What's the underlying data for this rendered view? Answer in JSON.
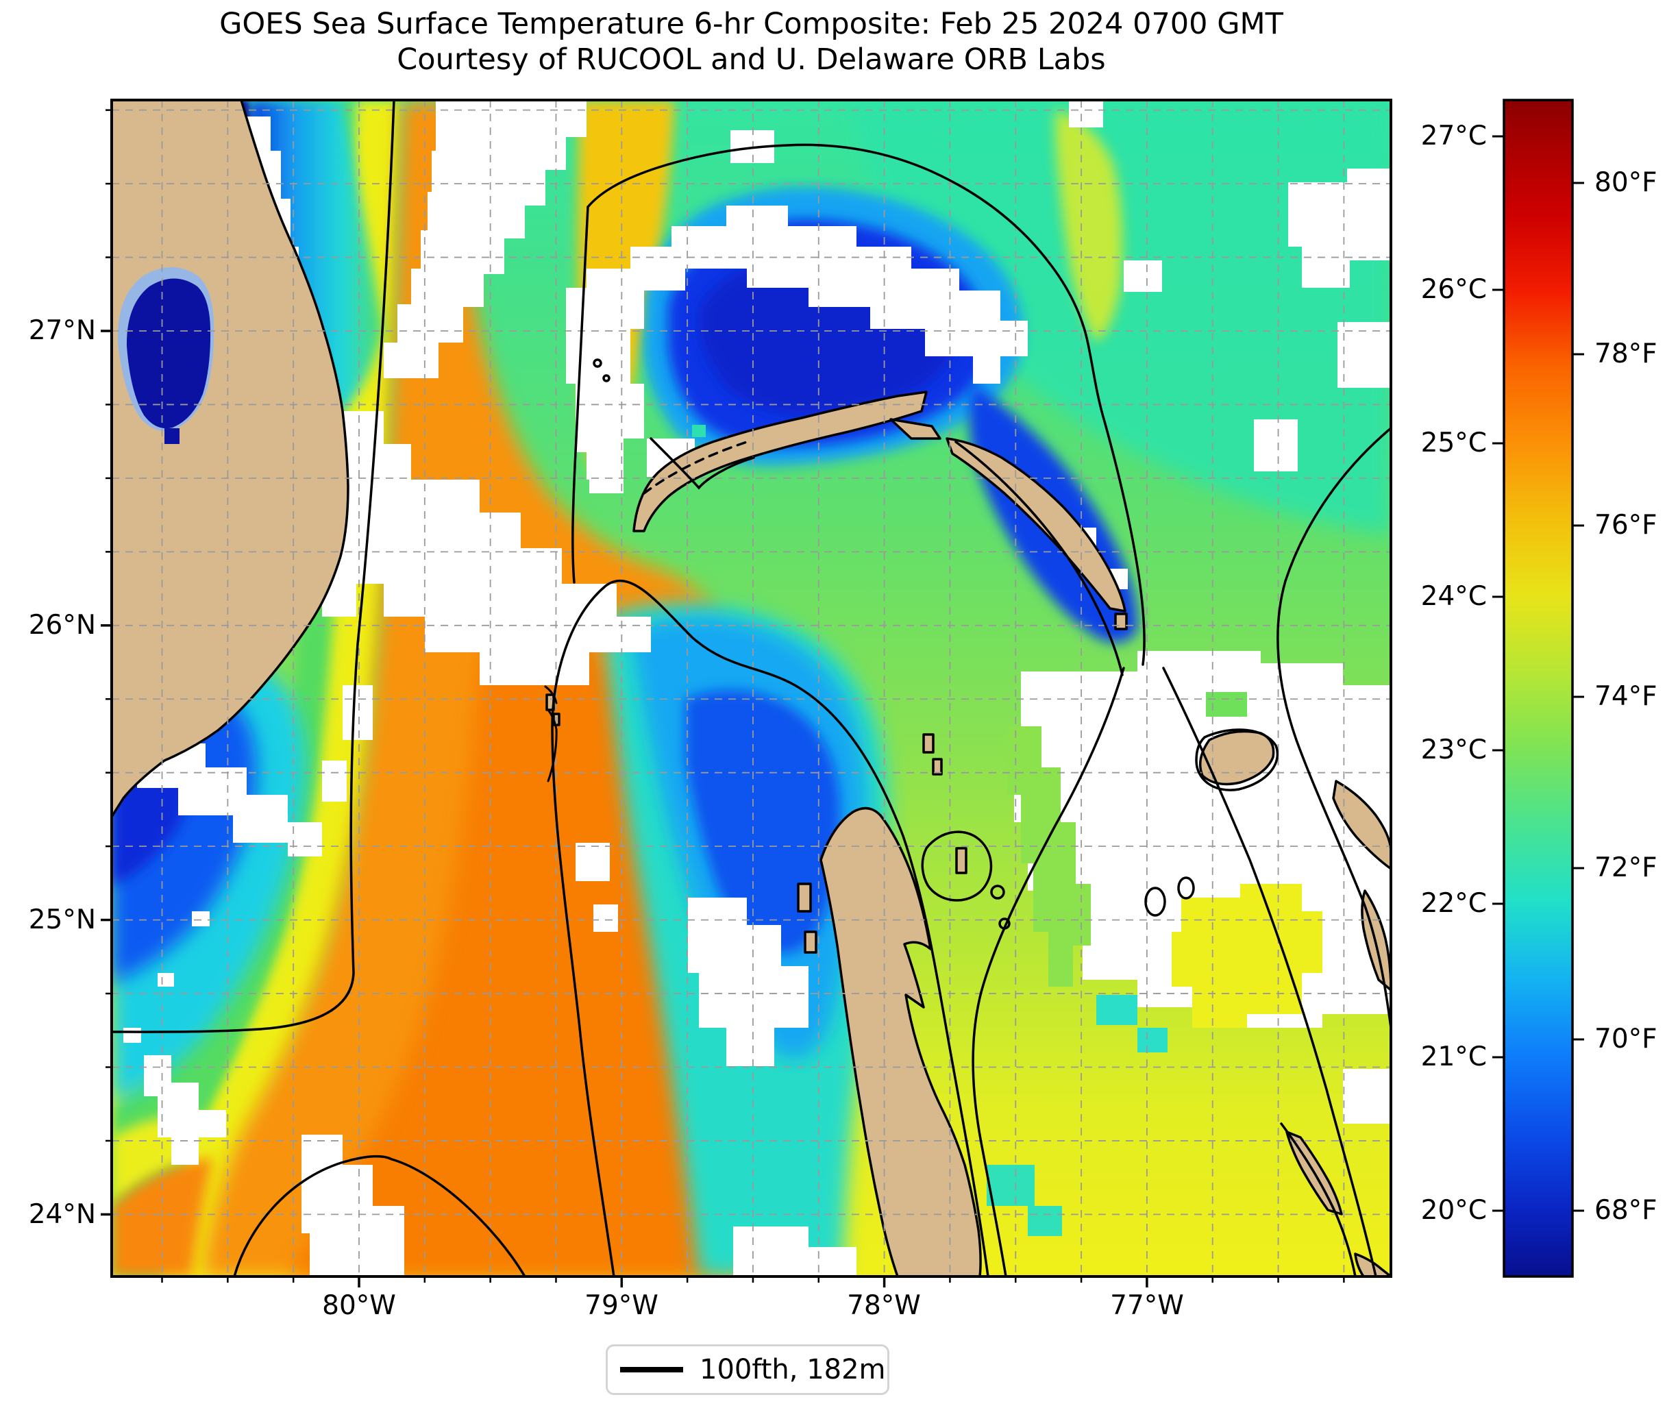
{
  "figure": {
    "title_line1": "GOES Sea Surface Temperature 6-hr Composite: Feb 25 2024 0700 GMT",
    "title_line2": "Courtesy of RUCOOL and U. Delaware ORB Labs"
  },
  "axes": {
    "lon_ticks": [
      "80°W",
      "79°W",
      "78°W",
      "77°W"
    ],
    "lat_ticks": [
      "27°N",
      "26°N",
      "25°N",
      "24°N"
    ]
  },
  "colorbar": {
    "celsius_ticks": [
      "27°C",
      "26°C",
      "25°C",
      "24°C",
      "23°C",
      "22°C",
      "21°C",
      "20°C"
    ],
    "fahrenheit_ticks": [
      "80°F",
      "78°F",
      "76°F",
      "74°F",
      "72°F",
      "70°F",
      "68°F"
    ]
  },
  "legend": {
    "label": "100fth, 182m"
  },
  "chart_data": {
    "type": "heatmap",
    "title": "GOES Sea Surface Temperature 6-hr Composite: Feb 25 2024 0700 GMT",
    "subtitle": "Courtesy of RUCOOL and U. Delaware ORB Labs",
    "variable": "sea surface temperature",
    "lon_range_deg_w": [
      80.94,
      76.06
    ],
    "lat_range_deg_n": [
      23.79,
      27.78
    ],
    "lon_tick_values_w": [
      80,
      79,
      78,
      77
    ],
    "lat_tick_values_n": [
      27,
      26,
      25,
      24
    ],
    "grid_interval_deg": 0.25,
    "grid_style": "dashed gray",
    "colormap": "jet",
    "colorbar_range_c": [
      19.6,
      27.2
    ],
    "colorbar_ticks_c": [
      27,
      26,
      25,
      24,
      23,
      22,
      21,
      20
    ],
    "colorbar_ticks_f": [
      80,
      78,
      76,
      74,
      72,
      70,
      68
    ],
    "colormap_stops_top_to_bottom": [
      "#8b0000",
      "#cd0000",
      "#f21c00",
      "#fa6400",
      "#fb9207",
      "#f3c00c",
      "#e7e419",
      "#b5e635",
      "#7ee356",
      "#48e392",
      "#20dfca",
      "#14b2f2",
      "#0e7cfa",
      "#0b4ce9",
      "#0a24c2",
      "#070f8e"
    ],
    "contour_legend": {
      "label": "100fth, 182m",
      "depth_fathoms": 100,
      "depth_m": 182,
      "line_color": "#000000"
    },
    "no_data_color": "#ffffff",
    "land_color": "#d8b98e",
    "features": [
      {
        "name": "florida-peninsula",
        "type": "land",
        "color": "#d8b98e"
      },
      {
        "name": "lake-okeechobee-cold",
        "type": "water",
        "approx_temp_c": 19.8,
        "color": "#0b12a2"
      },
      {
        "name": "cape-coast-cold-pool",
        "type": "water",
        "approx_temp_c": 20.0,
        "color": "#0b12a2"
      },
      {
        "name": "gulf-stream-warm-tongue",
        "type": "water",
        "approx_temp_c": 25.5,
        "color": "#f88a06"
      },
      {
        "name": "florida-coastal-cold-band",
        "type": "water",
        "approx_temp_c": 20.8,
        "color": "#0e5af2"
      },
      {
        "name": "little-bahama-bank-cold-pool",
        "type": "water",
        "approx_temp_c": 20.6,
        "color": "#0b35e6"
      },
      {
        "name": "great-bahama-bank-cold-tongue",
        "type": "water",
        "approx_temp_c": 21.3,
        "color": "#14a8f2"
      },
      {
        "name": "atlantic-open-water",
        "type": "water",
        "approx_temp_c": 23.0,
        "color": "#55dc74"
      },
      {
        "name": "bahama-banks-shallows",
        "type": "water",
        "approx_temp_c": 24.2,
        "color": "#e8ec20"
      },
      {
        "name": "cloud-no-data",
        "type": "mask",
        "color": "#ffffff"
      },
      {
        "name": "grand-bahama-island",
        "type": "land",
        "color": "#d8b98e"
      },
      {
        "name": "abaco-islands",
        "type": "land",
        "color": "#d8b98e"
      },
      {
        "name": "bimini-islands",
        "type": "land",
        "color": "#d8b98e"
      },
      {
        "name": "berry-islands",
        "type": "land",
        "color": "#d8b98e"
      },
      {
        "name": "andros-island",
        "type": "land",
        "color": "#d8b98e"
      },
      {
        "name": "new-providence-area",
        "type": "land",
        "color": "#d8b98e"
      },
      {
        "name": "eleuthera-chain",
        "type": "land",
        "color": "#d8b98e"
      },
      {
        "name": "exuma-cays",
        "type": "land",
        "color": "#d8b98e"
      }
    ],
    "approx_sst_grid": {
      "lon_w": [
        80.7,
        80.2,
        79.7,
        79.2,
        78.7,
        78.2,
        77.7,
        77.2,
        76.7,
        76.3
      ],
      "lat_n": [
        27.6,
        27.1,
        26.6,
        26.1,
        25.6,
        25.1,
        24.6,
        24.1
      ],
      "sst_c": [
        [
          null,
          19.9,
          25.0,
          null,
          24.3,
          23.2,
          23.0,
          22.9,
          22.8,
          22.8
        ],
        [
          19.8,
          22.5,
          25.2,
          null,
          20.8,
          20.6,
          22.9,
          23.0,
          22.9,
          22.8
        ],
        [
          null,
          23.0,
          24.7,
          null,
          20.7,
          20.5,
          null,
          23.0,
          23.0,
          22.9
        ],
        [
          null,
          23.2,
          24.4,
          25.2,
          24.0,
          20.9,
          21.5,
          23.2,
          23.1,
          23.0
        ],
        [
          null,
          21.2,
          23.3,
          25.4,
          22.0,
          null,
          23.4,
          null,
          23.2,
          23.1
        ],
        [
          20.9,
          21.5,
          25.5,
          25.5,
          21.3,
          null,
          23.5,
          null,
          null,
          23.3
        ],
        [
          25.0,
          25.3,
          25.6,
          25.4,
          21.7,
          null,
          23.6,
          null,
          23.6,
          null
        ],
        [
          25.2,
          25.4,
          25.6,
          25.3,
          22.2,
          null,
          24.3,
          24.0,
          null,
          23.8
        ]
      ]
    }
  }
}
